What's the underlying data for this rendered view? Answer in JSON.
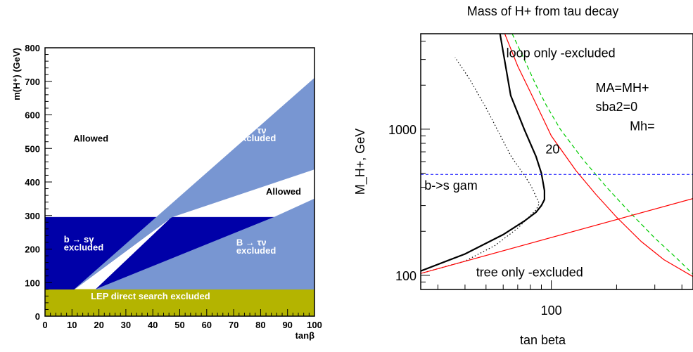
{
  "chart_data": [
    {
      "type": "area",
      "xlabel": "tanβ",
      "ylabel": "m(H⁺) (GeV)",
      "xlim": [
        0,
        100
      ],
      "ylim": [
        0,
        800
      ],
      "x_ticks": [
        "0",
        "10",
        "20",
        "30",
        "40",
        "50",
        "60",
        "70",
        "80",
        "90",
        "100"
      ],
      "y_ticks": [
        "0",
        "100",
        "200",
        "300",
        "400",
        "500",
        "600",
        "700",
        "800"
      ],
      "colors": {
        "dark": "#0000a8",
        "light": "#7896d2",
        "lep": "#b4b400"
      },
      "regions": [
        {
          "name": "LEP direct search excluded",
          "color": "lep",
          "polygon": [
            [
              0,
              0
            ],
            [
              100,
              0
            ],
            [
              100,
              80
            ],
            [
              0,
              80
            ]
          ]
        },
        {
          "name": "b → sγ excluded",
          "color": "dark",
          "polygon": [
            [
              0,
              80
            ],
            [
              10.9,
              80
            ],
            [
              47,
              295
            ],
            [
              0,
              295
            ]
          ]
        },
        {
          "name": "dark band",
          "color": "dark",
          "polygon": [
            [
              18.8,
              80
            ],
            [
              47,
              295
            ],
            [
              85,
              295
            ]
          ]
        },
        {
          "name": "B → τν excluded (upper)",
          "color": "light",
          "polygon": [
            [
              10.9,
              80
            ],
            [
              100,
              710
            ],
            [
              100,
              438
            ],
            [
              47,
              295
            ]
          ]
        },
        {
          "name": "B → τν excluded (lower)",
          "color": "light",
          "polygon": [
            [
              18.8,
              80
            ],
            [
              85,
              295
            ],
            [
              100,
              350
            ],
            [
              100,
              80
            ]
          ]
        }
      ],
      "annotations": [
        {
          "text": "Allowed",
          "x": 10.5,
          "y": 520
        },
        {
          "text": "B → τν",
          "x": 71,
          "y": 545
        },
        {
          "text": "excluded",
          "x": 71,
          "y": 521
        },
        {
          "text": "Allowed",
          "x": 82,
          "y": 362
        },
        {
          "text": "b → sγ",
          "x": 7,
          "y": 220
        },
        {
          "text": "excluded",
          "x": 7,
          "y": 196
        },
        {
          "text": "B → τν",
          "x": 71,
          "y": 210
        },
        {
          "text": "excluded",
          "x": 71,
          "y": 186
        },
        {
          "text": "LEP direct search excluded",
          "x": 17,
          "y": 50
        }
      ]
    },
    {
      "type": "line",
      "title": "Mass of H+ from tau decay",
      "xlabel": "tan beta",
      "ylabel": "M_H+, GeV",
      "xscale": "log",
      "yscale": "log",
      "xlim": [
        25,
        450
      ],
      "ylim": [
        80,
        4500
      ],
      "x_ticks": [
        "100"
      ],
      "y_ticks": [
        "100",
        "1000"
      ],
      "series": [
        {
          "style": "black-solid",
          "color": "#000000",
          "x": [
            25,
            40,
            60,
            75,
            85,
            90,
            93,
            93,
            90,
            85,
            75,
            65,
            58
          ],
          "y": [
            107,
            140,
            190,
            235,
            270,
            300,
            330,
            380,
            500,
            650,
            1000,
            1700,
            4500
          ]
        },
        {
          "style": "black-dotted",
          "color": "#000000",
          "x": [
            25,
            40,
            55,
            70,
            85,
            88,
            80,
            65,
            50,
            42,
            36
          ],
          "y": [
            103,
            125,
            160,
            210,
            280,
            310,
            420,
            660,
            1400,
            2200,
            3100
          ]
        },
        {
          "style": "red-curve",
          "color": "#ff0000",
          "x": [
            61,
            70,
            80,
            90,
            100,
            130,
            160,
            200,
            260,
            330,
            450
          ],
          "y": [
            4500,
            2700,
            1800,
            1250,
            900,
            520,
            360,
            250,
            170,
            128,
            98
          ]
        },
        {
          "style": "green-dashed",
          "color": "#00cc00",
          "x": [
            66,
            75,
            85,
            95,
            110,
            140,
            180,
            230,
            300,
            380,
            450
          ],
          "y": [
            4500,
            3000,
            2000,
            1450,
            1000,
            620,
            400,
            270,
            180,
            130,
            102
          ]
        },
        {
          "style": "red-line",
          "color": "#ff0000",
          "x": [
            25,
            450
          ],
          "y": [
            103,
            335
          ]
        },
        {
          "style": "blue-dashed",
          "color": "#0000ff",
          "x": [
            25,
            450
          ],
          "y": [
            490,
            490
          ]
        }
      ],
      "annotations": [
        {
          "text": "loop only -excluded",
          "x": 62,
          "y": 3100
        },
        {
          "text": "MA=MH+",
          "x": 160,
          "y": 1800
        },
        {
          "text": "sba2=0",
          "x": 160,
          "y": 1330
        },
        {
          "text": "Mh=",
          "x": 230,
          "y": 980
        },
        {
          "text": "20",
          "x": 94,
          "y": 680
        },
        {
          "text": "b->s gam",
          "x": 26,
          "y": 385
        },
        {
          "text": "tree only -excluded",
          "x": 45,
          "y": 98
        }
      ]
    }
  ]
}
